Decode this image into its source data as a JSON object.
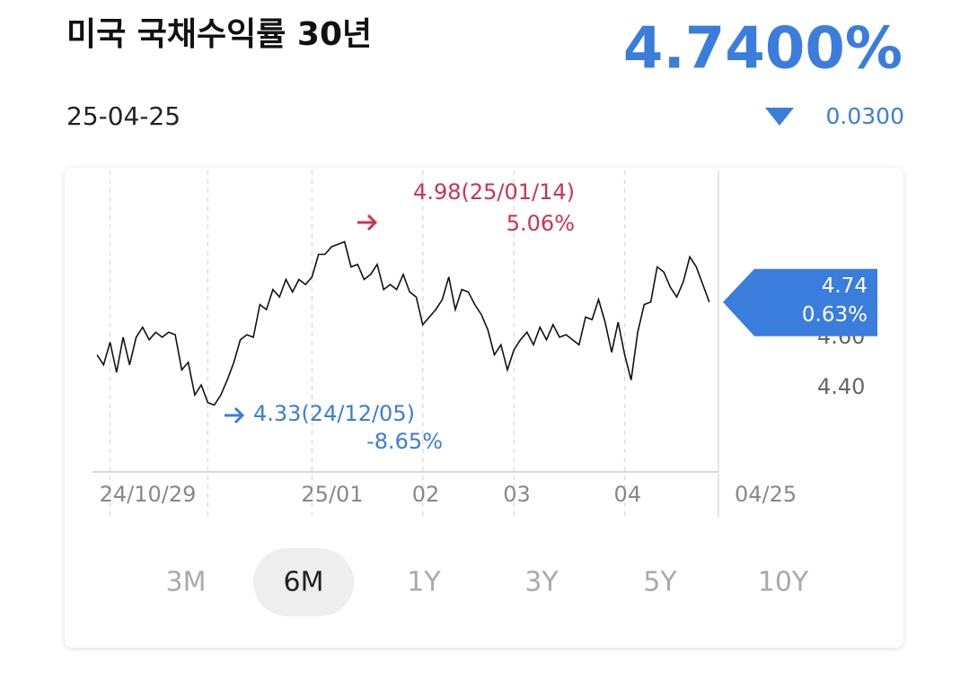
{
  "header": {
    "title": "미국 국채수익률 30년",
    "date": "25-04-25",
    "price": "4.7400%",
    "change": "0.0300"
  },
  "chart_data": {
    "type": "line",
    "color": "#111111",
    "grid": true,
    "values": [
      4.53,
      4.49,
      4.58,
      4.46,
      4.6,
      4.49,
      4.6,
      4.64,
      4.59,
      4.62,
      4.6,
      4.62,
      4.61,
      4.47,
      4.5,
      4.37,
      4.41,
      4.34,
      4.33,
      4.37,
      4.43,
      4.5,
      4.59,
      4.61,
      4.6,
      4.73,
      4.71,
      4.79,
      4.76,
      4.83,
      4.78,
      4.83,
      4.81,
      4.84,
      4.93,
      4.93,
      4.96,
      4.97,
      4.98,
      4.88,
      4.89,
      4.83,
      4.85,
      4.89,
      4.79,
      4.81,
      4.79,
      4.85,
      4.78,
      4.76,
      4.65,
      4.68,
      4.71,
      4.75,
      4.84,
      4.71,
      4.79,
      4.78,
      4.73,
      4.69,
      4.63,
      4.53,
      4.57,
      4.47,
      4.55,
      4.59,
      4.62,
      4.57,
      4.64,
      4.59,
      4.65,
      4.6,
      4.61,
      4.59,
      4.57,
      4.68,
      4.67,
      4.75,
      4.66,
      4.54,
      4.66,
      4.53,
      4.43,
      4.62,
      4.73,
      4.74,
      4.88,
      4.86,
      4.8,
      4.76,
      4.82,
      4.92,
      4.88,
      4.81,
      4.74
    ],
    "xlim": [
      -0.7,
      95.4
    ],
    "ylim": [
      4.064,
      5.264
    ],
    "yticks": [
      {
        "value": 4.4,
        "label": "4.40"
      },
      {
        "value": 4.6,
        "label": "4.60"
      }
    ],
    "xticks": [
      {
        "value": 2,
        "label": "24/10/29"
      },
      {
        "value": 17,
        "label": null
      },
      {
        "value": 33,
        "label": "25/01"
      },
      {
        "value": 50,
        "label": "02"
      },
      {
        "value": 64,
        "label": "03"
      },
      {
        "value": 81,
        "label": "04"
      },
      {
        "value": 94,
        "label": "04/25"
      }
    ],
    "annotations": {
      "max": {
        "text": "4.98(25/01/14)",
        "change": "5.06%"
      },
      "min": {
        "text": "4.33(24/12/05)",
        "change": "-8.65%"
      },
      "last": {
        "text": "4.74",
        "change": "0.63%"
      }
    }
  },
  "ranges": [
    "3M",
    "6M",
    "1Y",
    "3Y",
    "5Y",
    "10Y"
  ],
  "active_range": 1
}
